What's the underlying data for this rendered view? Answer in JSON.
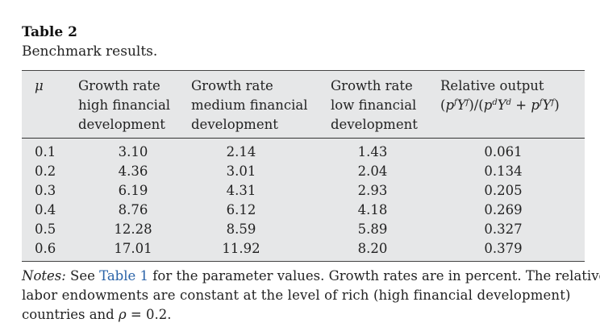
{
  "caption": {
    "title": "Table 2",
    "subtitle": "Benchmark results."
  },
  "table": {
    "headers": {
      "mu": "μ",
      "col1": [
        "Growth rate",
        "high financial",
        "development"
      ],
      "col2": [
        "Growth rate",
        "medium financial",
        "development"
      ],
      "col3": [
        "Growth rate",
        "low financial",
        "development"
      ],
      "col4_line1": "Relative output",
      "col4_formula": "(p^f Y^f)/(p^d Y^d + p^f Y^f)"
    },
    "rows": [
      {
        "mu": "0.1",
        "high": "3.10",
        "medium": "2.14",
        "low": "1.43",
        "relative": "0.061"
      },
      {
        "mu": "0.2",
        "high": "4.36",
        "medium": "3.01",
        "low": "2.04",
        "relative": "0.134"
      },
      {
        "mu": "0.3",
        "high": "6.19",
        "medium": "4.31",
        "low": "2.93",
        "relative": "0.205"
      },
      {
        "mu": "0.4",
        "high": "8.76",
        "medium": "6.12",
        "low": "4.18",
        "relative": "0.269"
      },
      {
        "mu": "0.5",
        "high": "12.28",
        "medium": "8.59",
        "low": "5.89",
        "relative": "0.327"
      },
      {
        "mu": "0.6",
        "high": "17.01",
        "medium": "11.92",
        "low": "8.20",
        "relative": "0.379"
      }
    ]
  },
  "notes": {
    "label": "Notes:",
    "pre_link": " See ",
    "link": "Table 1",
    "line1_post": " for the parameter values. Growth rates are in percent. The relative",
    "line2": "labor endowments are constant at the level of rich (high financial development)",
    "line3_pre": "countries and ",
    "rho": "ρ",
    "line3_post": " = 0.2."
  }
}
